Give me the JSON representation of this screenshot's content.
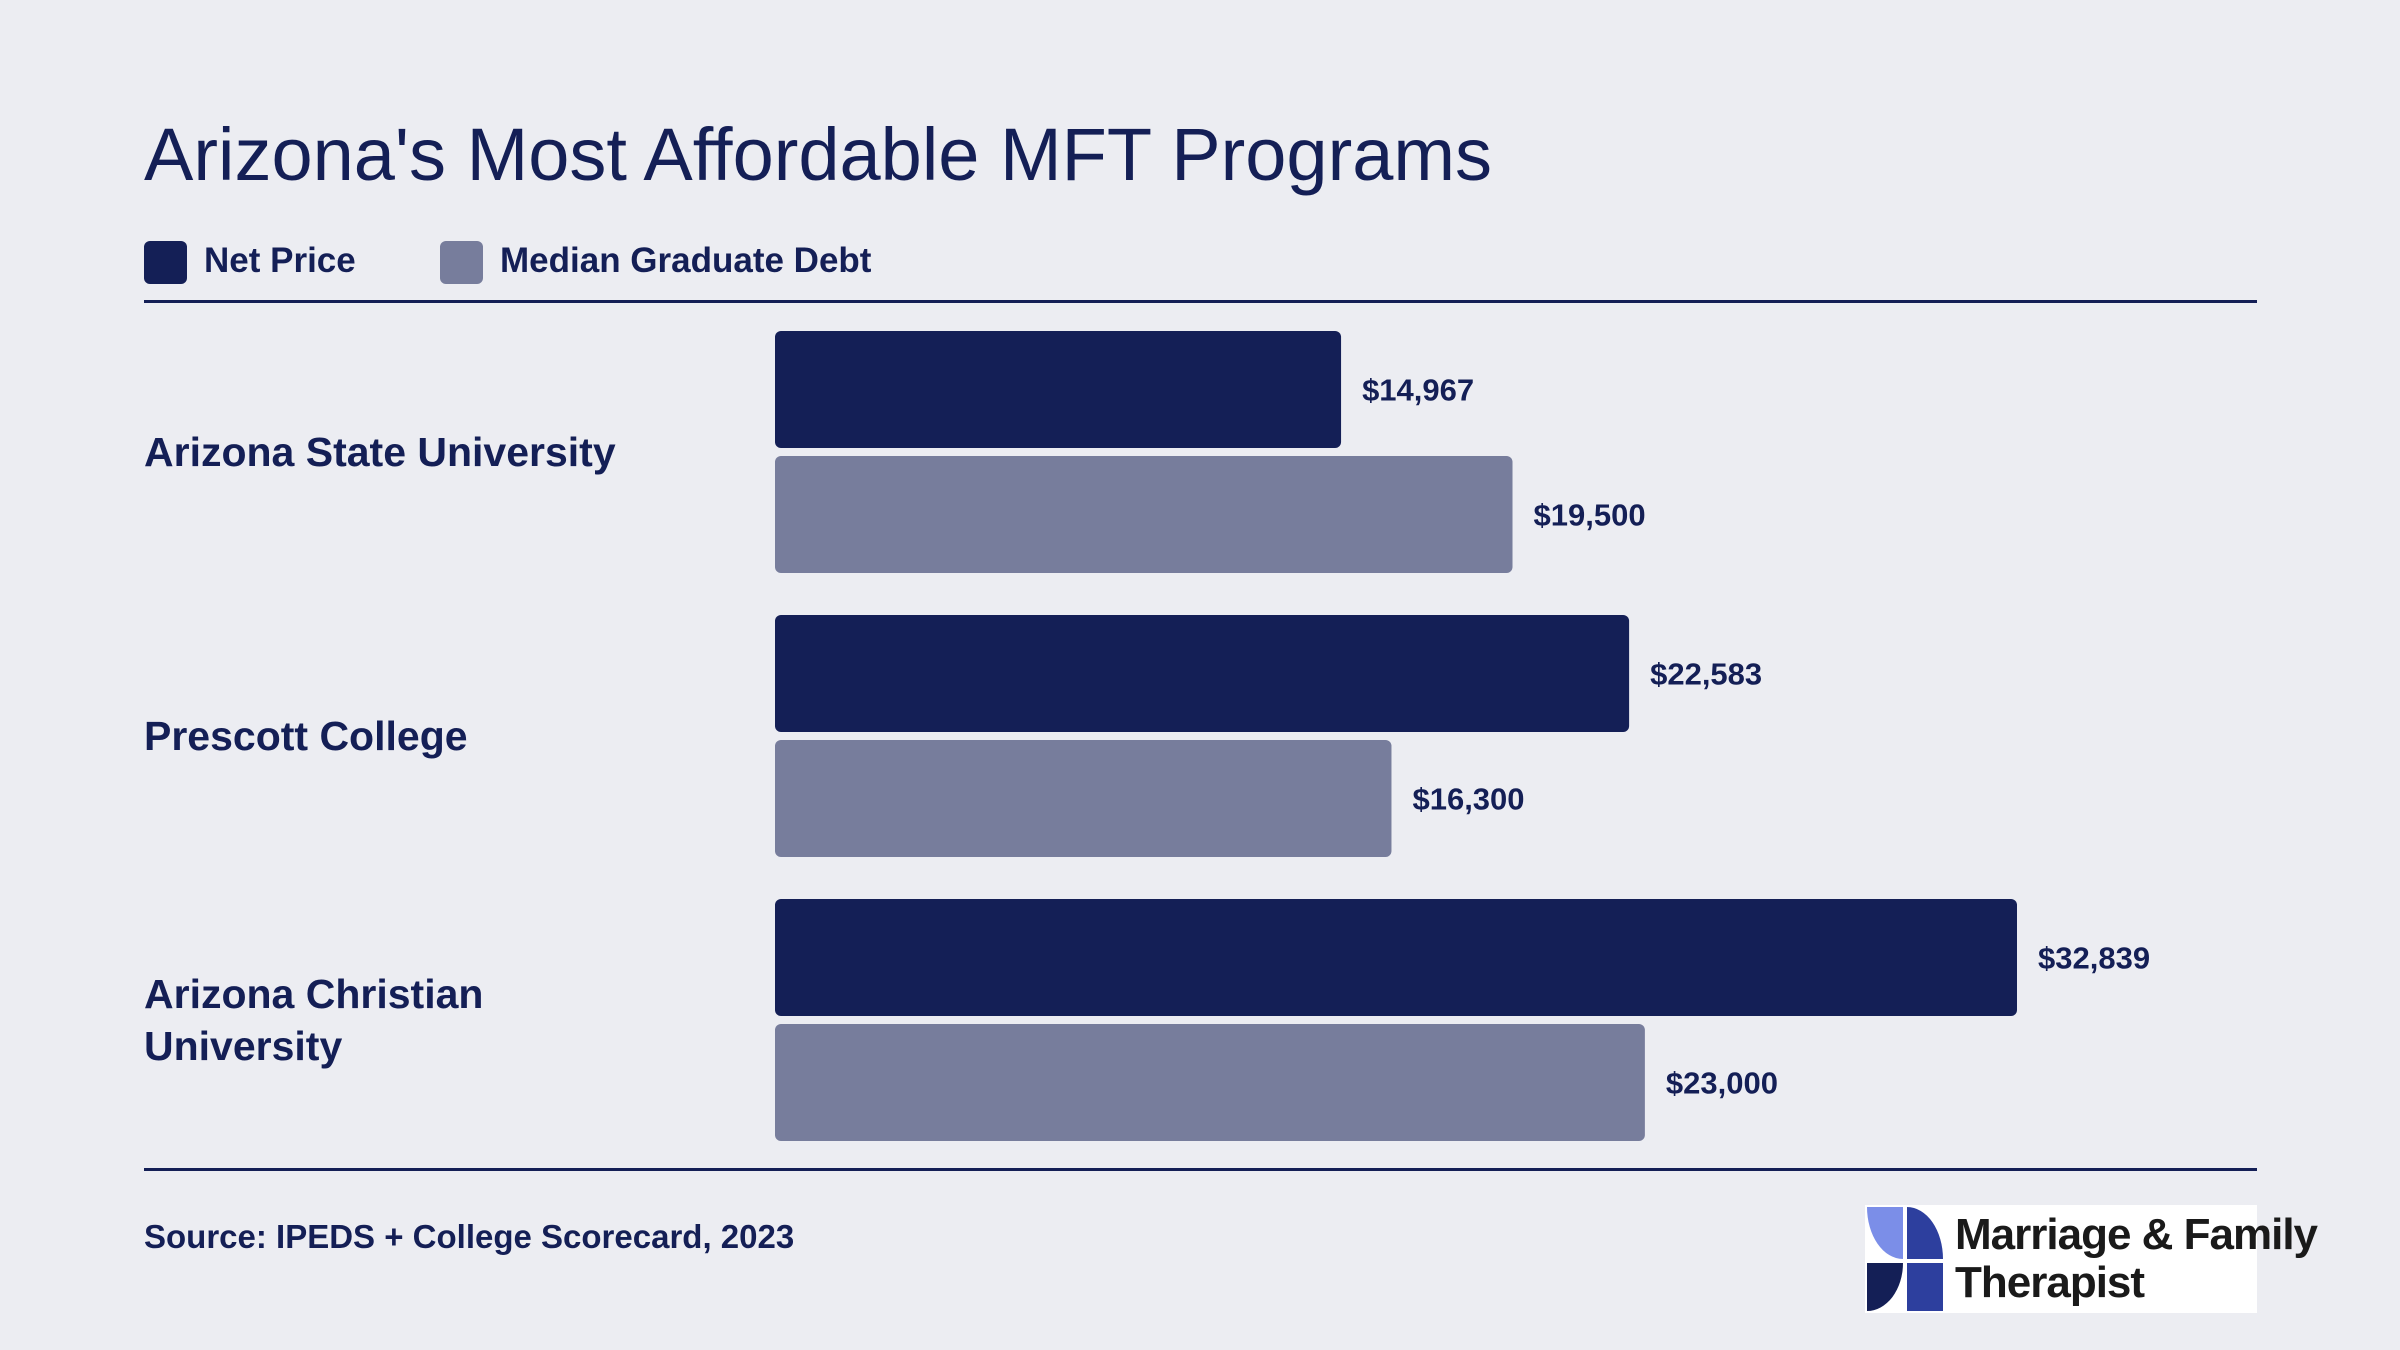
{
  "title": "Arizona's Most Affordable MFT Programs",
  "legend": [
    {
      "label": "Net Price",
      "color": "#141f56"
    },
    {
      "label": "Median Graduate Debt",
      "color": "#777d9c"
    }
  ],
  "source": "Source: IPEDS + College Scorecard, 2023",
  "logo": {
    "line1": "Marriage & Family",
    "line2": "Therapist"
  },
  "chart_data": {
    "type": "bar",
    "orientation": "horizontal",
    "categories": [
      [
        "Arizona State University"
      ],
      [
        "Prescott College"
      ],
      [
        "Arizona Christian",
        "University"
      ]
    ],
    "series": [
      {
        "name": "Net Price",
        "color": "#141f56",
        "values": [
          14967,
          22583,
          32839
        ],
        "labels": [
          "$14,967",
          "$22,583",
          "$32,839"
        ]
      },
      {
        "name": "Median Graduate Debt",
        "color": "#777d9c",
        "values": [
          19500,
          16300,
          23000
        ],
        "labels": [
          "$19,500",
          "$16,300",
          "$23,000"
        ]
      }
    ],
    "xlim": [
      0,
      32839
    ],
    "grid": false,
    "legend_position": "top-left"
  }
}
